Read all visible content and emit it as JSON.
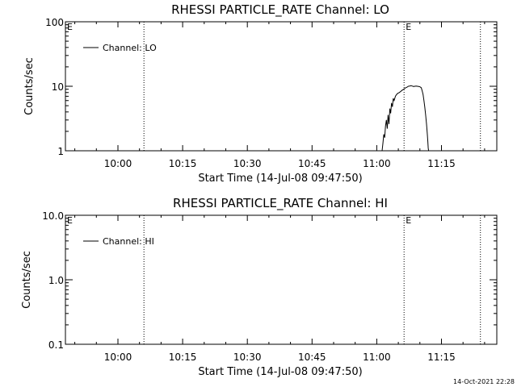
{
  "footer": {
    "timestamp": "14-Oct-2021 22:28"
  },
  "chart_data": [
    {
      "type": "line",
      "title": "RHESSI PARTICLE_RATE Channel: LO",
      "xlabel": "Start Time (14-Jul-08 09:47:50)",
      "ylabel": "Counts/sec",
      "yscale": "log",
      "ylim": [
        1,
        100
      ],
      "yticks": [
        1,
        10,
        100
      ],
      "ytick_labels": [
        "1",
        "10",
        "100"
      ],
      "xrange_minutes": [
        0,
        100
      ],
      "xticks": [
        12.17,
        27.17,
        42.17,
        57.17,
        72.17,
        87.17
      ],
      "xtick_labels": [
        "10:00",
        "10:15",
        "10:30",
        "10:45",
        "11:00",
        "11:15"
      ],
      "legend": {
        "position": "top-left",
        "entries": [
          "Channel: LO"
        ]
      },
      "vlines": [
        18.2,
        78.5,
        96.2
      ],
      "markers": [
        {
          "x": 0,
          "label": "E"
        },
        {
          "x": 78.5,
          "label": "E"
        }
      ],
      "series": [
        {
          "name": "Channel: LO",
          "x": [
            73.4,
            73.6,
            73.8,
            74.0,
            74.2,
            74.4,
            74.6,
            74.8,
            75.0,
            75.2,
            75.4,
            75.6,
            75.8,
            76.0,
            76.2,
            76.5,
            76.8,
            77.1,
            77.4,
            77.7,
            78.0,
            78.3,
            78.6,
            78.9,
            79.2,
            79.5,
            79.8,
            80.1,
            80.4,
            80.7,
            81.0,
            81.3,
            81.6,
            81.9,
            82.2,
            82.5,
            82.7,
            82.9,
            83.1,
            83.3,
            83.5,
            83.7,
            83.9,
            84.0,
            84.1,
            84.2
          ],
          "y": [
            1.0,
            1.3,
            1.8,
            1.6,
            2.4,
            3.0,
            2.2,
            3.6,
            2.6,
            4.5,
            3.8,
            5.5,
            4.8,
            6.5,
            6.0,
            7.0,
            7.5,
            7.8,
            8.0,
            8.3,
            8.6,
            8.9,
            9.2,
            9.5,
            9.7,
            10.0,
            10.1,
            10.2,
            10.1,
            9.9,
            10.0,
            10.1,
            10.0,
            9.9,
            9.8,
            9.5,
            8.5,
            7.5,
            6.0,
            4.8,
            3.6,
            2.6,
            1.8,
            1.4,
            1.1,
            1.0
          ]
        }
      ]
    },
    {
      "type": "line",
      "title": "RHESSI PARTICLE_RATE Channel: HI",
      "xlabel": "Start Time (14-Jul-08 09:47:50)",
      "ylabel": "Counts/sec",
      "yscale": "log",
      "ylim": [
        0.1,
        10
      ],
      "yticks": [
        0.1,
        1,
        10
      ],
      "ytick_labels": [
        "0.1",
        "1.0",
        "10.0"
      ],
      "xrange_minutes": [
        0,
        100
      ],
      "xticks": [
        12.17,
        27.17,
        42.17,
        57.17,
        72.17,
        87.17
      ],
      "xtick_labels": [
        "10:00",
        "10:15",
        "10:30",
        "10:45",
        "11:00",
        "11:15"
      ],
      "legend": {
        "position": "top-left",
        "entries": [
          "Channel: HI"
        ]
      },
      "vlines": [
        18.2,
        78.5,
        96.2
      ],
      "markers": [
        {
          "x": 0,
          "label": "E"
        },
        {
          "x": 78.5,
          "label": "E"
        }
      ],
      "series": [
        {
          "name": "Channel: HI",
          "x": [],
          "y": []
        }
      ]
    }
  ]
}
